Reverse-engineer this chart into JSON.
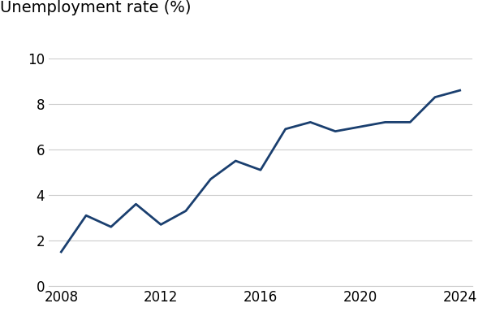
{
  "title": "Unemployment rate (%)",
  "x_values": [
    2008,
    2009,
    2010,
    2011,
    2012,
    2013,
    2014,
    2015,
    2016,
    2017,
    2018,
    2019,
    2020,
    2021,
    2022,
    2023,
    2024
  ],
  "y_values": [
    1.5,
    3.1,
    2.6,
    3.6,
    2.7,
    3.3,
    4.7,
    5.5,
    5.1,
    6.9,
    7.2,
    6.8,
    7.0,
    7.2,
    7.2,
    8.3,
    8.6
  ],
  "line_color": "#1a3f6f",
  "line_width": 2.0,
  "ylim": [
    0,
    10
  ],
  "yticks": [
    0,
    2,
    4,
    6,
    8,
    10
  ],
  "xticks": [
    2008,
    2012,
    2016,
    2020,
    2024
  ],
  "xlim": [
    2007.5,
    2024.5
  ],
  "grid_color": "#cccccc",
  "background_color": "#ffffff",
  "title_fontsize": 14,
  "tick_fontsize": 12
}
